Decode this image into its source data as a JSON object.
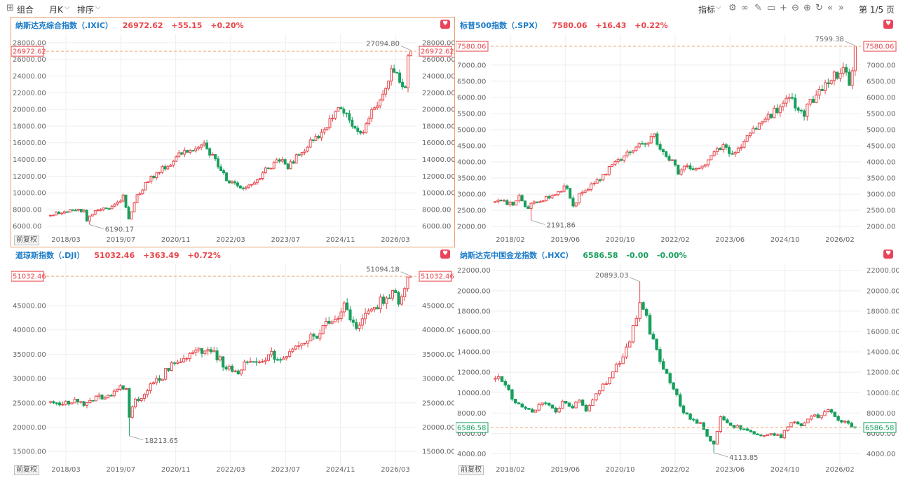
{
  "toolbar": {
    "combo_label": "组合",
    "period_label": "月K",
    "sort_label": "排序",
    "indicator_label": "指标",
    "page_label": "第 1/5 页"
  },
  "colors": {
    "up": "#e8454a",
    "down": "#17a05d",
    "grid": "#eeeeee",
    "axis_text": "#666666",
    "name": "#1c7cc8",
    "price_line": "#f0a878"
  },
  "panels": [
    {
      "name": "纳斯达克综合指数（.IXIC）",
      "price": "26972.62",
      "change": "+55.15",
      "pct": "+0.20%",
      "trend": "up",
      "adj_label": "前复权",
      "cur_label": "26972.62",
      "chart_data": {
        "type": "candlestick",
        "y_ticks": [
          "28000.00",
          "26000.00",
          "24000.00",
          "22000.00",
          "20000.00",
          "18000.00",
          "16000.00",
          "14000.00",
          "12000.00",
          "10000.00",
          "8000.00",
          "6000.00"
        ],
        "x_ticks": [
          "2018/03",
          "2019/07",
          "2020/11",
          "2022/03",
          "2023/07",
          "2024/11",
          "2026/03"
        ],
        "ylim": [
          4800,
          29000
        ],
        "high_label": "27094.80",
        "low_label": "6190.17",
        "high": 27094.8,
        "low": 6190.17,
        "last": 26972.62,
        "anchors": [
          [
            0,
            7400
          ],
          [
            8,
            7900
          ],
          [
            12,
            7800
          ],
          [
            13,
            6635
          ],
          [
            16,
            8000
          ],
          [
            21,
            8100
          ],
          [
            24,
            8700
          ],
          [
            26,
            9500
          ],
          [
            28,
            7000
          ],
          [
            31,
            9550
          ],
          [
            34,
            11000
          ],
          [
            37,
            12100
          ],
          [
            41,
            13100
          ],
          [
            46,
            14500
          ],
          [
            51,
            15400
          ],
          [
            54,
            16000
          ],
          [
            56,
            15300
          ],
          [
            60,
            13400
          ],
          [
            63,
            11600
          ],
          [
            66,
            11200
          ],
          [
            69,
            10500
          ],
          [
            71,
            10700
          ],
          [
            74,
            11700
          ],
          [
            78,
            13000
          ],
          [
            82,
            14000
          ],
          [
            85,
            13100
          ],
          [
            90,
            15000
          ],
          [
            94,
            16500
          ],
          [
            97,
            17000
          ],
          [
            101,
            19200
          ],
          [
            104,
            20400
          ],
          [
            107,
            18700
          ],
          [
            109,
            17700
          ],
          [
            112,
            17300
          ],
          [
            114,
            19200
          ],
          [
            118,
            21300
          ],
          [
            122,
            24400
          ],
          [
            123,
            23950
          ],
          [
            124,
            24300
          ],
          [
            125,
            23000
          ],
          [
            126,
            22200
          ],
          [
            127,
            22800
          ],
          [
            128,
            26000
          ],
          [
            129,
            26972.62
          ]
        ]
      }
    },
    {
      "name": "标普500指数（.SPX）",
      "price": "7580.06",
      "change": "+16.43",
      "pct": "+0.22%",
      "trend": "up",
      "adj_label": "",
      "cur_label": "7580.06",
      "chart_data": {
        "type": "candlestick",
        "y_ticks": [
          "7000.00",
          "6500.00",
          "6000.00",
          "5500.00",
          "5000.00",
          "4500.00",
          "4000.00",
          "3500.00",
          "3000.00",
          "2500.00",
          "2000.00"
        ],
        "x_ticks": [
          "2018/02",
          "2019/06",
          "2020/10",
          "2022/02",
          "2023/06",
          "2024/10",
          "2026/02"
        ],
        "ylim": [
          1700,
          7950
        ],
        "high_label": "7599.38",
        "low_label": "2191.86",
        "high": 7599.38,
        "low": 2191.86,
        "last": 7580.06,
        "anchors": [
          [
            0,
            2800
          ],
          [
            6,
            2700
          ],
          [
            8,
            2900
          ],
          [
            10,
            2550
          ],
          [
            14,
            2800
          ],
          [
            19,
            2950
          ],
          [
            24,
            3250
          ],
          [
            26,
            2600
          ],
          [
            28,
            2950
          ],
          [
            31,
            3200
          ],
          [
            34,
            3400
          ],
          [
            38,
            3800
          ],
          [
            42,
            4100
          ],
          [
            46,
            4400
          ],
          [
            51,
            4650
          ],
          [
            53,
            4800
          ],
          [
            55,
            4500
          ],
          [
            58,
            4150
          ],
          [
            61,
            3700
          ],
          [
            64,
            3900
          ],
          [
            67,
            3800
          ],
          [
            70,
            3900
          ],
          [
            73,
            4300
          ],
          [
            76,
            4500
          ],
          [
            79,
            4200
          ],
          [
            84,
            4700
          ],
          [
            89,
            5300
          ],
          [
            94,
            5600
          ],
          [
            97,
            6000
          ],
          [
            99,
            5900
          ],
          [
            101,
            5650
          ],
          [
            103,
            5500
          ],
          [
            105,
            5800
          ],
          [
            108,
            6200
          ],
          [
            111,
            6500
          ],
          [
            113,
            6700
          ],
          [
            117,
            6800
          ],
          [
            118,
            6500
          ],
          [
            119,
            6950
          ],
          [
            120,
            7580.06
          ]
        ]
      }
    },
    {
      "name": "道琼斯指数（.DJI）",
      "price": "51032.46",
      "change": "+363.49",
      "pct": "+0.72%",
      "trend": "up",
      "adj_label": "前复权",
      "cur_label": "51032.46",
      "chart_data": {
        "type": "candlestick",
        "y_ticks": [
          "45000.00",
          "40000.00",
          "35000.00",
          "30000.00",
          "25000.00",
          "20000.00",
          "15000.00"
        ],
        "x_ticks": [
          "2018/03",
          "2019/07",
          "2020/11",
          "2022/03",
          "2023/07",
          "2024/11",
          "2026/03"
        ],
        "ylim": [
          12000,
          53500
        ],
        "high_label": "51094.18",
        "low_label": "18213.65",
        "high": 51094.18,
        "low": 18213.65,
        "last": 51032.46,
        "anchors": [
          [
            0,
            25500
          ],
          [
            4,
            24300
          ],
          [
            8,
            26000
          ],
          [
            11,
            24000
          ],
          [
            14,
            25500
          ],
          [
            18,
            26500
          ],
          [
            22,
            27500
          ],
          [
            25,
            28500
          ],
          [
            26,
            22000
          ],
          [
            28,
            25500
          ],
          [
            31,
            27000
          ],
          [
            34,
            29000
          ],
          [
            37,
            30500
          ],
          [
            40,
            33000
          ],
          [
            44,
            34500
          ],
          [
            49,
            35500
          ],
          [
            52,
            36000
          ],
          [
            55,
            34500
          ],
          [
            58,
            32500
          ],
          [
            61,
            31000
          ],
          [
            64,
            33000
          ],
          [
            67,
            33200
          ],
          [
            70,
            33500
          ],
          [
            73,
            34800
          ],
          [
            76,
            33500
          ],
          [
            80,
            36500
          ],
          [
            84,
            37500
          ],
          [
            88,
            39000
          ],
          [
            91,
            42000
          ],
          [
            95,
            43000
          ],
          [
            97,
            44500
          ],
          [
            99,
            42500
          ],
          [
            101,
            40500
          ],
          [
            103,
            42000
          ],
          [
            106,
            44000
          ],
          [
            109,
            46000
          ],
          [
            112,
            47500
          ],
          [
            115,
            46000
          ],
          [
            117,
            48000
          ],
          [
            118,
            50000
          ],
          [
            119,
            51032.46
          ]
        ]
      }
    },
    {
      "name": "纳斯达克中国金龙指数（.HXC）",
      "price": "6586.58",
      "change": "-0.00",
      "pct": "-0.00%",
      "trend": "down",
      "adj_label": "前复权",
      "cur_label": "6586.58",
      "chart_data": {
        "type": "candlestick",
        "y_ticks": [
          "22000.00",
          "20000.00",
          "18000.00",
          "16000.00",
          "14000.00",
          "12000.00",
          "10000.00",
          "8000.00",
          "6000.00",
          "4000.00"
        ],
        "x_ticks": [
          "2018/02",
          "2019/06",
          "2020/10",
          "2022/02",
          "2023/06",
          "2024/10",
          "2026/02"
        ],
        "ylim": [
          2800,
          22600
        ],
        "high_label": "20893.03",
        "low_label": "4113.85",
        "high": 20893.03,
        "low": 4113.85,
        "last": 6586.58,
        "anchors": [
          [
            0,
            11500
          ],
          [
            3,
            11000
          ],
          [
            5,
            9500
          ],
          [
            8,
            8500
          ],
          [
            11,
            8000
          ],
          [
            13,
            9000
          ],
          [
            15,
            8800
          ],
          [
            18,
            8300
          ],
          [
            20,
            9000
          ],
          [
            23,
            8700
          ],
          [
            25,
            9500
          ],
          [
            27,
            8200
          ],
          [
            30,
            9800
          ],
          [
            33,
            11000
          ],
          [
            36,
            12500
          ],
          [
            40,
            15000
          ],
          [
            43,
            18700
          ],
          [
            45,
            17200
          ],
          [
            48,
            14000
          ],
          [
            50,
            12500
          ],
          [
            53,
            10500
          ],
          [
            56,
            8000
          ],
          [
            59,
            7200
          ],
          [
            61,
            7000
          ],
          [
            63,
            5700
          ],
          [
            65,
            5000
          ],
          [
            67,
            7500
          ],
          [
            70,
            6800
          ],
          [
            73,
            6500
          ],
          [
            76,
            6100
          ],
          [
            79,
            5900
          ],
          [
            82,
            6000
          ],
          [
            85,
            5700
          ],
          [
            88,
            7000
          ],
          [
            91,
            6900
          ],
          [
            94,
            7800
          ],
          [
            96,
            7500
          ],
          [
            99,
            8200
          ],
          [
            102,
            7400
          ],
          [
            105,
            7000
          ],
          [
            107,
            6586.58
          ]
        ]
      }
    }
  ]
}
